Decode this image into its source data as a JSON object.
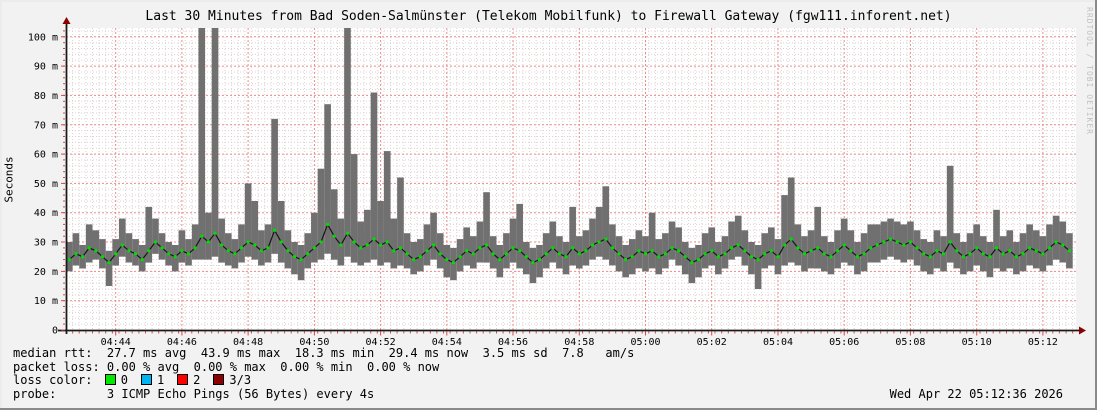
{
  "title": "Last 30 Minutes from Bad Soden-Salmünster (Telekom Mobilfunk) to Firewall Gateway (fgw111.inforent.net)",
  "watermark": "RRDTOOL / TOBI OETIKER",
  "timestamp": "Wed Apr 22 05:12:36 2026",
  "stats_lines": [
    {
      "name": "median-rtt",
      "text": "median rtt:  27.7 ms avg  43.9 ms max  18.3 ms min  29.4 ms now  3.5 ms sd  7.8   am/s"
    },
    {
      "name": "packet-loss",
      "text": "packet loss: 0.00 % avg  0.00 % max  0.00 % min  0.00 % now"
    },
    {
      "name": "loss-color",
      "prefix": "loss color: ",
      "legend": [
        {
          "color": "#00e800",
          "label": "0"
        },
        {
          "color": "#00b4f0",
          "label": "1"
        },
        {
          "color": "#ff0000",
          "label": "2"
        },
        {
          "color": "#8b0000",
          "label": "3/3"
        }
      ]
    },
    {
      "name": "probe",
      "text": "probe:       3 ICMP Echo Pings (56 Bytes) every 4s"
    }
  ],
  "chart_data": {
    "type": "line",
    "subtype": "smokeping latency graph (median line + min/max smoke band)",
    "title": "Last 30 Minutes from Bad Soden-Salmünster (Telekom Mobilfunk) to Firewall Gateway (fgw111.inforent.net)",
    "xlabel": "",
    "ylabel": "Seconds",
    "y_unit": "milliseconds",
    "ylim": [
      0,
      103
    ],
    "x_window_min": 30.5,
    "t0_min": 0.1,
    "sample_interval_s": 12,
    "grid": {
      "on": true,
      "minor_x_min": 0.2,
      "minor_y": 2,
      "major_color": "#ec8a8a",
      "minor_color": "#ddd0d0"
    },
    "colors": {
      "plot_bg": "#ffffff",
      "smoke": "#707070",
      "median_line": "#161616",
      "median_marker": "#00dc00",
      "axis": "#1a1a1a",
      "tick": "#dd4444",
      "arrow": "#8b0000"
    },
    "x_ticks": [
      {
        "label": "04:44",
        "t_min": 1.5
      },
      {
        "label": "04:46",
        "t_min": 3.5
      },
      {
        "label": "04:48",
        "t_min": 5.5
      },
      {
        "label": "04:50",
        "t_min": 7.5
      },
      {
        "label": "04:52",
        "t_min": 9.5
      },
      {
        "label": "04:54",
        "t_min": 11.5
      },
      {
        "label": "04:56",
        "t_min": 13.5
      },
      {
        "label": "04:58",
        "t_min": 15.5
      },
      {
        "label": "05:00",
        "t_min": 17.5
      },
      {
        "label": "05:02",
        "t_min": 19.5
      },
      {
        "label": "05:04",
        "t_min": 21.5
      },
      {
        "label": "05:06",
        "t_min": 23.5
      },
      {
        "label": "05:08",
        "t_min": 25.5
      },
      {
        "label": "05:10",
        "t_min": 27.5
      },
      {
        "label": "05:12",
        "t_min": 29.5
      }
    ],
    "y_ticks": [
      {
        "label": "0",
        "value": 0
      },
      {
        "label": "10 m",
        "value": 10
      },
      {
        "label": "20 m",
        "value": 20
      },
      {
        "label": "30 m",
        "value": 30
      },
      {
        "label": "40 m",
        "value": 40
      },
      {
        "label": "50 m",
        "value": 50
      },
      {
        "label": "60 m",
        "value": 60
      },
      {
        "label": "70 m",
        "value": 70
      },
      {
        "label": "80 m",
        "value": 80
      },
      {
        "label": "90 m",
        "value": 90
      },
      {
        "label": "100 m",
        "value": 100
      }
    ],
    "series": [
      {
        "name": "smoke_min",
        "values": [
          20,
          22,
          21,
          23,
          24,
          21,
          15,
          22,
          25,
          23,
          22,
          20,
          23,
          26,
          24,
          22,
          20,
          23,
          22,
          24,
          24,
          24,
          25,
          23,
          22,
          21,
          23,
          25,
          24,
          22,
          23,
          26,
          23,
          21,
          19,
          17,
          21,
          23,
          24,
          26,
          24,
          22,
          25,
          23,
          22,
          23,
          24,
          22,
          23,
          21,
          22,
          21,
          19,
          20,
          22,
          24,
          21,
          18,
          17,
          20,
          22,
          21,
          23,
          23,
          21,
          18,
          21,
          23,
          21,
          19,
          16,
          18,
          21,
          23,
          21,
          19,
          22,
          21,
          22,
          24,
          25,
          24,
          22,
          20,
          18,
          19,
          21,
          20,
          21,
          19,
          21,
          24,
          22,
          19,
          16,
          18,
          21,
          22,
          19,
          21,
          24,
          25,
          22,
          19,
          14,
          21,
          22,
          19,
          22,
          23,
          22,
          20,
          21,
          21,
          20,
          19,
          21,
          23,
          22,
          19,
          20,
          23,
          23,
          24,
          25,
          24,
          23,
          24,
          22,
          20,
          19,
          21,
          20,
          23,
          21,
          19,
          20,
          22,
          20,
          18,
          21,
          20,
          21,
          19,
          20,
          22,
          21,
          20,
          22,
          24,
          23,
          21
        ]
      },
      {
        "name": "median",
        "values": [
          24,
          26,
          25,
          28,
          27,
          25,
          23,
          26,
          29,
          27,
          26,
          24,
          27,
          30,
          28,
          26,
          25,
          27,
          26,
          28,
          32,
          30,
          33,
          29,
          27,
          26,
          28,
          30,
          29,
          27,
          28,
          34,
          30,
          27,
          25,
          24,
          26,
          28,
          30,
          36,
          32,
          29,
          33,
          30,
          28,
          29,
          31,
          29,
          30,
          27,
          28,
          26,
          24,
          25,
          27,
          29,
          26,
          24,
          23,
          25,
          27,
          26,
          28,
          29,
          26,
          24,
          26,
          28,
          27,
          25,
          23,
          24,
          26,
          28,
          26,
          25,
          28,
          26,
          27,
          29,
          30,
          31,
          28,
          26,
          24,
          25,
          27,
          26,
          27,
          25,
          26,
          28,
          27,
          25,
          23,
          24,
          26,
          27,
          25,
          26,
          28,
          29,
          27,
          25,
          24,
          26,
          27,
          25,
          29,
          31,
          28,
          26,
          27,
          28,
          26,
          25,
          27,
          29,
          27,
          25,
          26,
          28,
          29,
          30,
          31,
          30,
          29,
          30,
          28,
          26,
          25,
          27,
          26,
          30,
          27,
          25,
          26,
          28,
          26,
          25,
          28,
          26,
          27,
          25,
          26,
          28,
          27,
          26,
          28,
          30,
          29,
          27
        ]
      },
      {
        "name": "smoke_max",
        "values": [
          30,
          33,
          29,
          36,
          34,
          31,
          27,
          31,
          38,
          33,
          31,
          29,
          42,
          38,
          33,
          30,
          29,
          34,
          31,
          36,
          104,
          40,
          104,
          38,
          33,
          31,
          36,
          50,
          44,
          34,
          36,
          72,
          44,
          34,
          30,
          29,
          33,
          40,
          55,
          77,
          48,
          38,
          104,
          60,
          37,
          41,
          81,
          44,
          61,
          38,
          52,
          33,
          30,
          31,
          36,
          40,
          33,
          29,
          28,
          31,
          35,
          32,
          37,
          47,
          32,
          29,
          33,
          38,
          43,
          30,
          28,
          29,
          33,
          37,
          32,
          30,
          42,
          32,
          34,
          38,
          42,
          49,
          36,
          32,
          29,
          31,
          34,
          32,
          40,
          31,
          33,
          37,
          35,
          30,
          28,
          29,
          33,
          35,
          30,
          32,
          37,
          39,
          34,
          30,
          29,
          33,
          35,
          31,
          46,
          52,
          36,
          32,
          34,
          42,
          32,
          30,
          34,
          38,
          34,
          30,
          33,
          36,
          36,
          37,
          38,
          37,
          36,
          37,
          34,
          31,
          30,
          34,
          32,
          56,
          33,
          30,
          33,
          36,
          32,
          30,
          41,
          32,
          34,
          30,
          33,
          36,
          34,
          32,
          36,
          39,
          37,
          33
        ]
      }
    ]
  }
}
